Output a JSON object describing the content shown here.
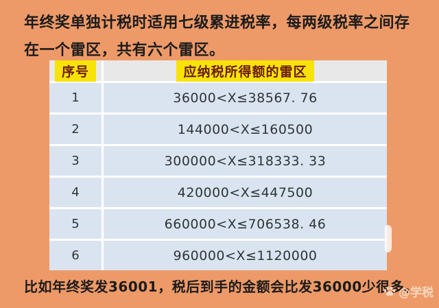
{
  "page": {
    "background_color": "#ee9a68",
    "table_row_color": "#dae4f0",
    "table_header_color": "#e8e8e8",
    "highlight_color": "#f8e308",
    "highlight_text_color": "#6b1a12",
    "grid_color": "#ffffff"
  },
  "intro": {
    "line1": "年终奖单独计税时适用七级累进税率，每两级税率之间存",
    "line2": "在一个雷区，共有六个雷区。"
  },
  "table": {
    "columns": [
      "序号",
      "应纳税所得额的雷区"
    ],
    "rows": [
      {
        "index": "1",
        "range": "36000<X≤38567. 76"
      },
      {
        "index": "2",
        "range": "144000<X≤160500"
      },
      {
        "index": "3",
        "range": "300000<X≤318333. 33"
      },
      {
        "index": "4",
        "range": "420000<X≤447500"
      },
      {
        "index": "5",
        "range": "660000<X≤706538. 46"
      },
      {
        "index": "6",
        "range": "960000<X≤1120000"
      }
    ]
  },
  "footer": {
    "text": "比如年终奖发36001，税后到手的金额会比发36000少很多。"
  },
  "watermark": {
    "icon": "paw-icon",
    "text": "@学税"
  }
}
